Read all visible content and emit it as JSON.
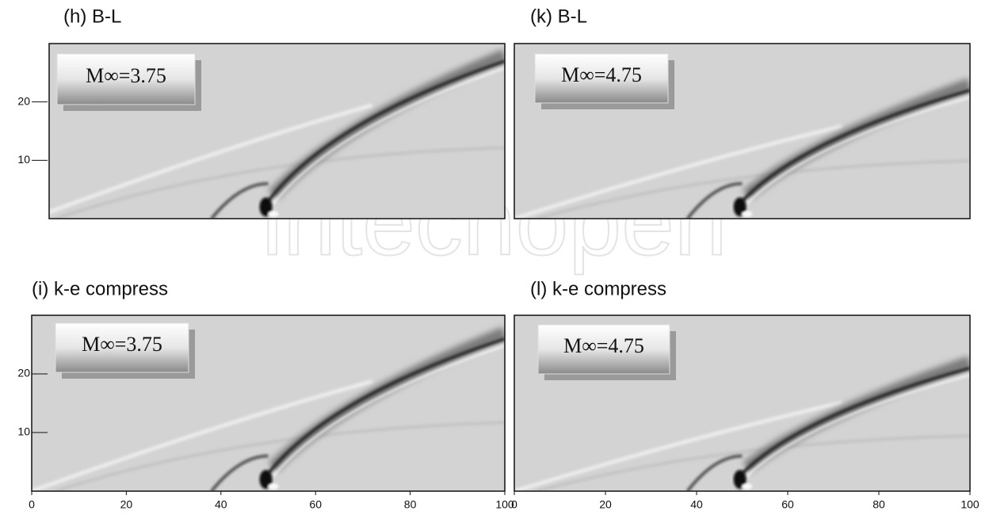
{
  "watermark": "intechopen",
  "panels": [
    {
      "title": "(h) B-L",
      "label": "M∞=3.75",
      "xlim": [
        0,
        100
      ],
      "ylim": [
        0,
        30
      ],
      "yticks": [
        10,
        20
      ]
    },
    {
      "title": "(k) B-L",
      "label": "M∞=4.75",
      "xlim": [
        0,
        100
      ],
      "ylim": [
        0,
        30
      ]
    },
    {
      "title": "(i) k-e compress",
      "label": "M∞=3.75",
      "xlim": [
        0,
        100
      ],
      "ylim": [
        0,
        30
      ],
      "yticks": [
        10,
        20
      ],
      "xticks": [
        0,
        20,
        40,
        60,
        80,
        100
      ]
    },
    {
      "title": "(l) k-e compress",
      "label": "M∞=4.75",
      "xlim": [
        0,
        100
      ],
      "ylim": [
        0,
        30
      ],
      "xticks": [
        0,
        20,
        40,
        60,
        80,
        100
      ]
    }
  ]
}
